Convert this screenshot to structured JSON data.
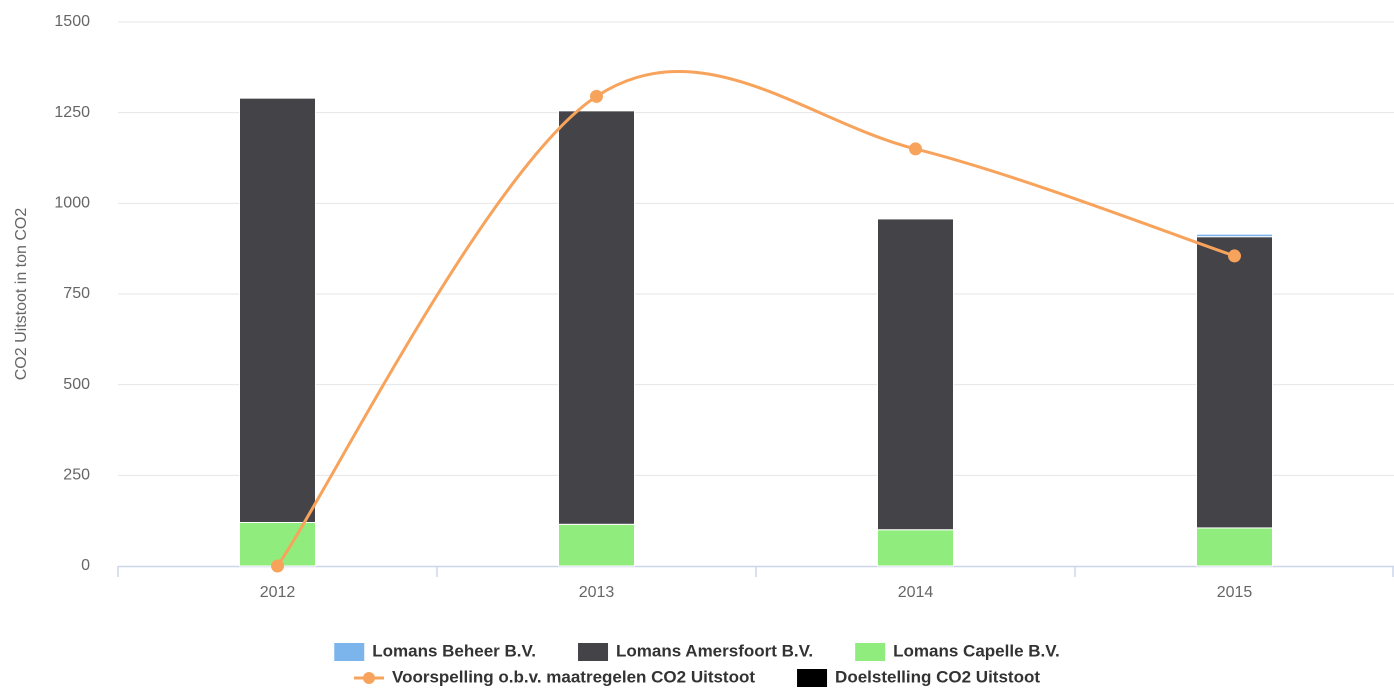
{
  "chart_data": {
    "type": "bar",
    "stacked": true,
    "categories": [
      "2012",
      "2013",
      "2014",
      "2015"
    ],
    "y_label": "CO2 Uitstoot in ton CO2",
    "ylim": [
      0,
      1500
    ],
    "yticks": [
      0,
      250,
      500,
      750,
      1000,
      1250,
      1500
    ],
    "grid": true,
    "legend": "bottom",
    "series": [
      {
        "name": "Lomans Beheer B.V.",
        "color": "#7cb5ec",
        "values": [
          0,
          0,
          0,
          7
        ]
      },
      {
        "name": "Lomans Amersfoort B.V.",
        "color": "#434348",
        "values": [
          1170,
          1140,
          857,
          803
        ]
      },
      {
        "name": "Lomans Capelle B.V.",
        "color": "#90ed7d",
        "values": [
          120,
          115,
          100,
          105
        ]
      },
      {
        "name": "Voorspelling o.b.v. maatregelen CO2 Uitstoot",
        "color": "#f7a35c",
        "type": "line",
        "values": [
          0,
          1295,
          1150,
          855
        ]
      },
      {
        "name": "Doelstelling CO2 Uitstoot",
        "color": "#000000",
        "values": [
          null,
          null,
          null,
          null
        ]
      }
    ]
  }
}
